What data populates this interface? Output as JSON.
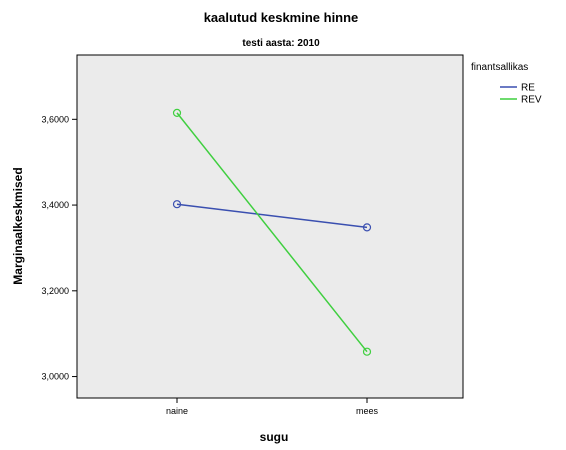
{
  "chart_data": {
    "type": "line",
    "title": "kaalutud keskmine hinne",
    "subtitle": "testi aasta: 2010",
    "xlabel": "sugu",
    "ylabel": "Marginaalkeskmised",
    "categories": [
      "naine",
      "mees"
    ],
    "ylim": [
      2.95,
      3.75
    ],
    "yticks": [
      3.0,
      3.2,
      3.4,
      3.6
    ],
    "ytick_labels": [
      "3,0000",
      "3,2000",
      "3,4000",
      "3,6000"
    ],
    "legend_title": "finantsallikas",
    "legend_position": "right",
    "grid": false,
    "plot_background": "#ebebeb",
    "series": [
      {
        "name": "RE",
        "color": "#3a4fb0",
        "values": [
          3.402,
          3.348
        ]
      },
      {
        "name": "REV",
        "color": "#3fcf3f",
        "values": [
          3.615,
          3.058
        ]
      }
    ]
  }
}
